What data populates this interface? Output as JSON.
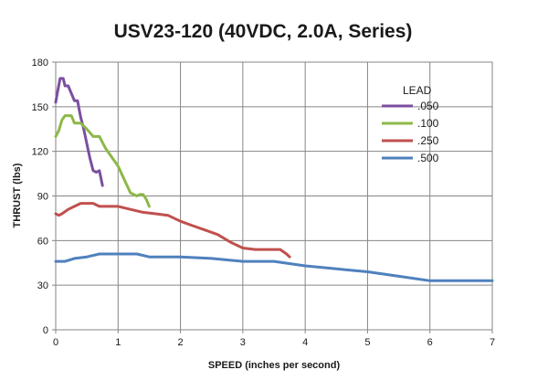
{
  "chart_data": {
    "type": "line",
    "title": "USV23-120 (40VDC, 2.0A, Series)",
    "xlabel": "SPEED (inches per second)",
    "ylabel": "THRUST (lbs)",
    "xlim": [
      0,
      7
    ],
    "ylim": [
      0,
      180
    ],
    "xticks": [
      0,
      1,
      2,
      3,
      4,
      5,
      6,
      7
    ],
    "yticks": [
      0,
      30,
      60,
      90,
      120,
      150,
      180
    ],
    "grid": true,
    "legend": {
      "title": "LEAD",
      "placement": "top-right"
    },
    "series": [
      {
        "name": ".050",
        "color": "#7B4FA0",
        "points": [
          [
            0.0,
            153
          ],
          [
            0.03,
            160
          ],
          [
            0.07,
            169
          ],
          [
            0.12,
            169
          ],
          [
            0.15,
            164
          ],
          [
            0.2,
            164
          ],
          [
            0.25,
            159
          ],
          [
            0.3,
            154
          ],
          [
            0.35,
            154
          ],
          [
            0.4,
            143
          ],
          [
            0.45,
            135
          ],
          [
            0.5,
            125
          ],
          [
            0.55,
            115
          ],
          [
            0.6,
            107
          ],
          [
            0.65,
            106
          ],
          [
            0.7,
            107
          ],
          [
            0.75,
            97
          ]
        ]
      },
      {
        "name": ".100",
        "color": "#8DB848",
        "points": [
          [
            0.0,
            130
          ],
          [
            0.05,
            134
          ],
          [
            0.1,
            141
          ],
          [
            0.15,
            144
          ],
          [
            0.25,
            144
          ],
          [
            0.3,
            139
          ],
          [
            0.4,
            139
          ],
          [
            0.5,
            135
          ],
          [
            0.6,
            130
          ],
          [
            0.7,
            130
          ],
          [
            0.8,
            122
          ],
          [
            0.9,
            116
          ],
          [
            1.0,
            110
          ],
          [
            1.1,
            101
          ],
          [
            1.2,
            92
          ],
          [
            1.3,
            90
          ],
          [
            1.35,
            91
          ],
          [
            1.4,
            91
          ],
          [
            1.45,
            88
          ],
          [
            1.5,
            83
          ]
        ]
      },
      {
        "name": ".250",
        "color": "#C0504D",
        "points": [
          [
            0.0,
            78
          ],
          [
            0.05,
            77
          ],
          [
            0.1,
            78
          ],
          [
            0.2,
            81
          ],
          [
            0.3,
            83
          ],
          [
            0.4,
            85
          ],
          [
            0.5,
            85
          ],
          [
            0.6,
            85
          ],
          [
            0.7,
            83
          ],
          [
            0.8,
            83
          ],
          [
            1.0,
            83
          ],
          [
            1.2,
            81
          ],
          [
            1.4,
            79
          ],
          [
            1.6,
            78
          ],
          [
            1.8,
            77
          ],
          [
            2.0,
            73
          ],
          [
            2.2,
            70
          ],
          [
            2.4,
            67
          ],
          [
            2.6,
            64
          ],
          [
            2.8,
            59
          ],
          [
            3.0,
            55
          ],
          [
            3.2,
            54
          ],
          [
            3.4,
            54
          ],
          [
            3.6,
            54
          ],
          [
            3.7,
            51
          ],
          [
            3.75,
            49
          ]
        ]
      },
      {
        "name": ".500",
        "color": "#4F81BD",
        "points": [
          [
            0.0,
            46
          ],
          [
            0.15,
            46
          ],
          [
            0.3,
            48
          ],
          [
            0.5,
            49
          ],
          [
            0.7,
            51
          ],
          [
            1.0,
            51
          ],
          [
            1.3,
            51
          ],
          [
            1.5,
            49
          ],
          [
            1.8,
            49
          ],
          [
            2.0,
            49
          ],
          [
            2.5,
            48
          ],
          [
            3.0,
            46
          ],
          [
            3.5,
            46
          ],
          [
            4.0,
            43
          ],
          [
            4.5,
            41
          ],
          [
            5.0,
            39
          ],
          [
            5.5,
            36
          ],
          [
            6.0,
            33
          ],
          [
            6.5,
            33
          ],
          [
            7.0,
            33
          ]
        ]
      }
    ]
  }
}
